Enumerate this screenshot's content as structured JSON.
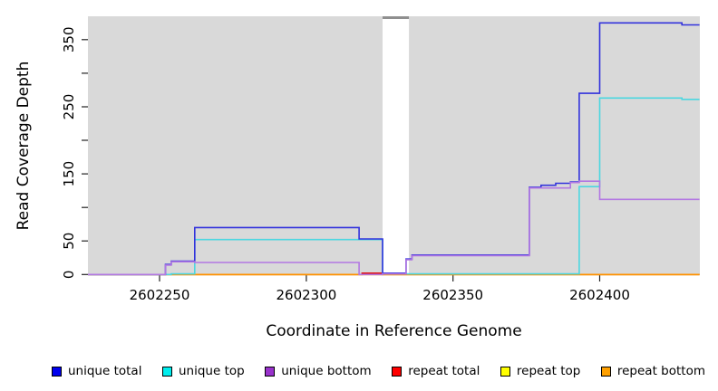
{
  "chart_data": {
    "type": "line",
    "subtype": "step-coverage",
    "title": "",
    "xlabel": "Coordinate in Reference Genome",
    "ylabel": "Read Coverage Depth",
    "xlim": [
      2602225,
      2602434
    ],
    "ylim": [
      0,
      385
    ],
    "grid": false,
    "plot_background": "#d9d9d9",
    "x_ticks": [
      2602250,
      2602300,
      2602350,
      2602400
    ],
    "y_ticks": [
      0,
      50,
      100,
      150,
      200,
      250,
      300,
      350
    ],
    "y_tick_labels_shown": [
      "0",
      "50",
      "150",
      "250",
      "350"
    ],
    "masked_region": {
      "start": 2602326,
      "end": 2602335,
      "fill": "#ffffff",
      "cap_color": "#8f8f8f"
    },
    "series": [
      {
        "name": "repeat total",
        "color": "#e01010",
        "points": [
          [
            2602225,
            0
          ],
          [
            2602319,
            2
          ],
          [
            2602326,
            0
          ]
        ]
      },
      {
        "name": "repeat top",
        "color": "#f0f000",
        "points": [
          [
            2602225,
            0
          ]
        ]
      },
      {
        "name": "repeat bottom",
        "color": "#ff9100",
        "points": [
          [
            2602225,
            0
          ]
        ]
      },
      {
        "name": "unique top",
        "color": "#4cd7e0",
        "points": [
          [
            2602225,
            0
          ],
          [
            2602254,
            1
          ],
          [
            2602262,
            52
          ],
          [
            2602326,
            1
          ],
          [
            2602393,
            131
          ],
          [
            2602400,
            263
          ],
          [
            2602428,
            261
          ]
        ]
      },
      {
        "name": "unique total",
        "color": "#3232dc",
        "points": [
          [
            2602225,
            0
          ],
          [
            2602252,
            15
          ],
          [
            2602254,
            20
          ],
          [
            2602262,
            70
          ],
          [
            2602318,
            53
          ],
          [
            2602326,
            2
          ],
          [
            2602334,
            23
          ],
          [
            2602336,
            29
          ],
          [
            2602376,
            130
          ],
          [
            2602380,
            133
          ],
          [
            2602385,
            136
          ],
          [
            2602390,
            138
          ],
          [
            2602393,
            270
          ],
          [
            2602400,
            375
          ],
          [
            2602428,
            372
          ]
        ]
      },
      {
        "name": "unique bottom",
        "color": "#b277e2",
        "points": [
          [
            2602225,
            0
          ],
          [
            2602252,
            14
          ],
          [
            2602254,
            19
          ],
          [
            2602262,
            18
          ],
          [
            2602318,
            0
          ],
          [
            2602326,
            1
          ],
          [
            2602334,
            22
          ],
          [
            2602336,
            28
          ],
          [
            2602376,
            129
          ],
          [
            2602390,
            137
          ],
          [
            2602393,
            139
          ],
          [
            2602400,
            112
          ]
        ]
      }
    ],
    "legend": [
      {
        "label": "unique total",
        "color": "#0000ee"
      },
      {
        "label": "unique top",
        "color": "#00eeee"
      },
      {
        "label": "unique bottom",
        "color": "#9932cc"
      },
      {
        "label": "repeat total",
        "color": "#ff0000"
      },
      {
        "label": "repeat top",
        "color": "#ffff00"
      },
      {
        "label": "repeat bottom",
        "color": "#ffa000"
      }
    ],
    "legend_position": "bottom"
  }
}
